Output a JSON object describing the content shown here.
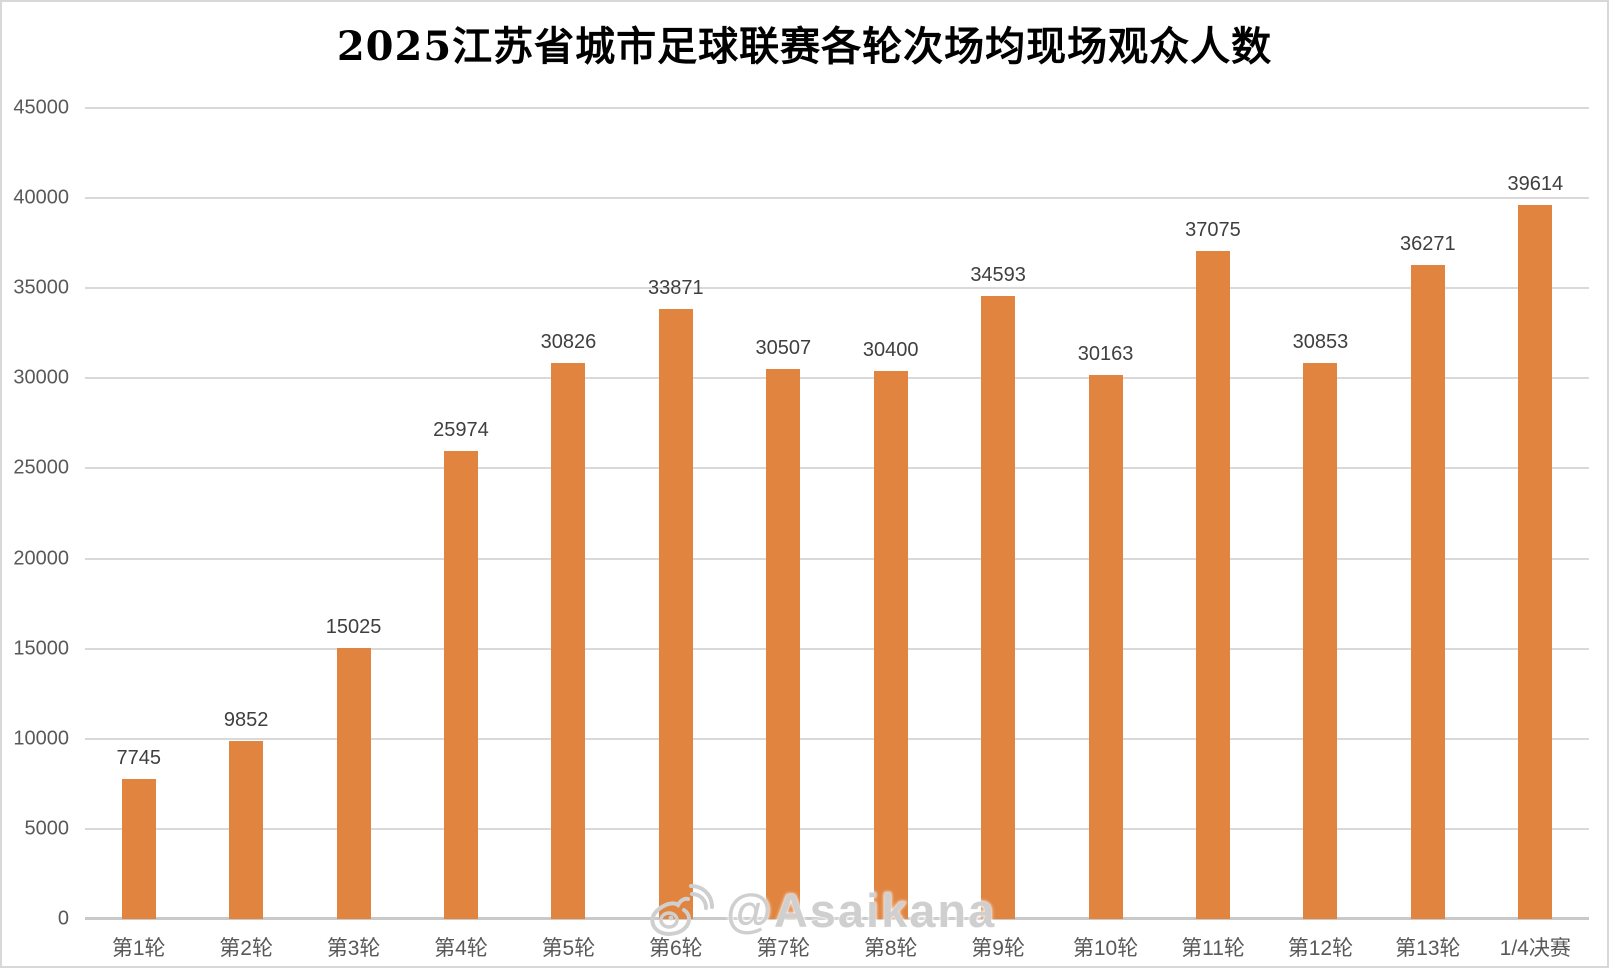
{
  "title": "2025江苏省城市足球联赛各轮次场均现场观众人数",
  "watermark": {
    "text": "@Asaikana",
    "icon": "weibo-logo"
  },
  "colors": {
    "bar": "#E08440",
    "gridline": "#D9D9D9",
    "axis_line": "#C9C9C9",
    "tick_label": "#595959",
    "data_label": "#3F3F3F",
    "title_color": "#000000",
    "watermark": "#CFCFCF",
    "background": "#FFFFFF",
    "border": "#D8D8D8"
  },
  "chart_data": {
    "type": "bar",
    "title": "2025江苏省城市足球联赛各轮次场均现场观众人数",
    "categories": [
      "第1轮",
      "第2轮",
      "第3轮",
      "第4轮",
      "第5轮",
      "第6轮",
      "第7轮",
      "第8轮",
      "第9轮",
      "第10轮",
      "第11轮",
      "第12轮",
      "第13轮",
      "1/4决赛"
    ],
    "values": [
      7745,
      9852,
      15025,
      25974,
      30826,
      33871,
      30507,
      30400,
      34593,
      30163,
      37075,
      30853,
      36271,
      39614
    ],
    "xlabel": "",
    "ylabel": "",
    "ylim": [
      0,
      45000
    ],
    "yticks": [
      0,
      5000,
      10000,
      15000,
      20000,
      25000,
      30000,
      35000,
      40000,
      45000
    ],
    "grid": true,
    "legend_position": "none",
    "data_labels": true,
    "bar_color": "#E08440"
  }
}
